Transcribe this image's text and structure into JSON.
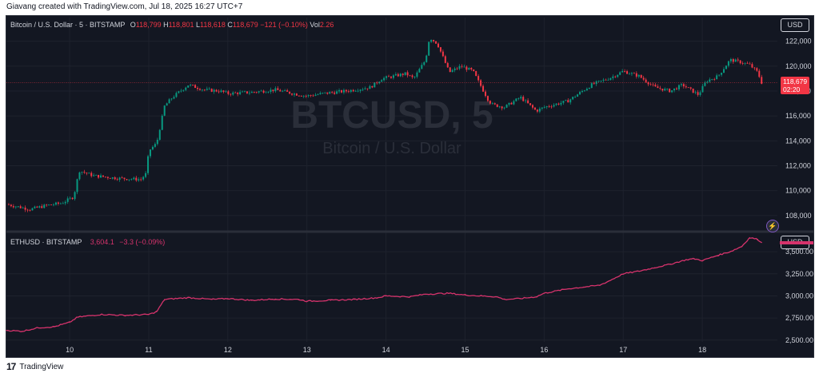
{
  "attribution": "Giavang created with TradingView.com, Jul 18, 2025 16:27 UTC+7",
  "footer": {
    "logo": "17",
    "brand": "TradingView"
  },
  "colors": {
    "background": "#131722",
    "up": "#089981",
    "down": "#f23645",
    "eth": "#d6336c",
    "grid": "#1e222d",
    "text": "#d1d4dc"
  },
  "legend_btc": {
    "symbol": "Bitcoin / U.S. Dollar · 5 · BITSTAMP",
    "o_label": "O",
    "o": "118,799",
    "h_label": "H",
    "h": "118,801",
    "l_label": "L",
    "l": "118,618",
    "c_label": "C",
    "c": "118,679",
    "change": "−121 (−0.10%)",
    "vol_label": "Vol",
    "vol": "2.26"
  },
  "legend_eth": {
    "symbol": "ETHUSD · BITSTAMP",
    "value": "3,604.1",
    "change": "−3.3 (−0.09%)"
  },
  "watermark": {
    "ticker": "BTCUSD, 5",
    "name": "Bitcoin / U.S. Dollar"
  },
  "currency_top": "USD",
  "currency_bottom": "USD",
  "price_tag": {
    "value": "118,679",
    "countdown": "02:20"
  },
  "bolt_icon": "lightning-bolt-icon",
  "chart_data": [
    {
      "type": "candlestick",
      "title": "Bitcoin / U.S. Dollar · 5 · BITSTAMP",
      "x_ticks": [
        "10",
        "11",
        "12",
        "13",
        "14",
        "15",
        "16",
        "17",
        "18"
      ],
      "y_ticks": [
        "108,000",
        "110,000",
        "112,000",
        "114,000",
        "116,000",
        "118,000",
        "120,000",
        "122,000"
      ],
      "ylim": [
        106900,
        123900
      ],
      "xlim": [
        9.2,
        18.95
      ],
      "last_price": 118679,
      "series": [
        {
          "name": "Bitcoin / U.S. Dollar",
          "x": [
            9.2,
            9.5,
            9.7,
            9.9,
            10.05,
            10.12,
            10.3,
            10.6,
            10.9,
            10.97,
            11.0,
            11.1,
            11.2,
            11.3,
            11.5,
            11.7,
            11.9,
            12.0,
            12.3,
            12.6,
            12.9,
            13.0,
            13.2,
            13.5,
            13.8,
            13.95,
            14.1,
            14.25,
            14.35,
            14.5,
            14.55,
            14.65,
            14.8,
            14.95,
            15.1,
            15.3,
            15.35,
            15.5,
            15.7,
            15.9,
            16.0,
            16.3,
            16.6,
            16.85,
            17.0,
            17.2,
            17.4,
            17.6,
            17.75,
            17.85,
            17.95,
            18.05,
            18.2,
            18.35,
            18.5,
            18.6,
            18.7,
            18.75
          ],
          "y": [
            108900,
            108500,
            108800,
            109000,
            109500,
            111600,
            111200,
            111000,
            110900,
            111400,
            113200,
            113800,
            116800,
            117500,
            118500,
            118100,
            118000,
            117800,
            117900,
            118100,
            117700,
            117600,
            117800,
            118000,
            118300,
            119000,
            119200,
            119400,
            119000,
            120500,
            122300,
            121800,
            119500,
            120000,
            119600,
            117200,
            116900,
            116700,
            117500,
            116400,
            116700,
            117200,
            118500,
            119100,
            119600,
            119200,
            118300,
            118000,
            118500,
            118100,
            117700,
            118800,
            119200,
            120500,
            120300,
            120100,
            119500,
            118679
          ]
        }
      ]
    },
    {
      "type": "line",
      "title": "ETHUSD · BITSTAMP",
      "y_ticks": [
        "2,500.00",
        "2,750.00",
        "3,000.00",
        "3,250.00",
        "3,500.00"
      ],
      "ylim": [
        2480,
        3700
      ],
      "xlim": [
        9.2,
        18.95
      ],
      "last_price": 3604.1,
      "series": [
        {
          "name": "ETHUSD",
          "x": [
            9.2,
            9.4,
            9.6,
            9.8,
            10.0,
            10.1,
            10.4,
            10.7,
            11.0,
            11.1,
            11.2,
            11.5,
            11.8,
            12.0,
            12.3,
            12.6,
            12.9,
            13.0,
            13.3,
            13.6,
            13.9,
            14.0,
            14.3,
            14.5,
            14.8,
            15.0,
            15.2,
            15.4,
            15.5,
            15.7,
            15.9,
            16.0,
            16.3,
            16.5,
            16.7,
            16.8,
            17.0,
            17.2,
            17.4,
            17.6,
            17.8,
            17.9,
            18.0,
            18.2,
            18.35,
            18.5,
            18.6,
            18.7,
            18.75
          ],
          "y": [
            2610,
            2600,
            2640,
            2650,
            2700,
            2760,
            2790,
            2780,
            2790,
            2820,
            2960,
            2980,
            2960,
            2970,
            2950,
            2965,
            2960,
            2940,
            2950,
            2960,
            2980,
            3000,
            2990,
            3020,
            3030,
            3010,
            3000,
            2990,
            2960,
            2970,
            2990,
            3030,
            3080,
            3100,
            3120,
            3160,
            3250,
            3280,
            3320,
            3360,
            3410,
            3420,
            3400,
            3460,
            3500,
            3560,
            3660,
            3640,
            3604
          ]
        }
      ]
    }
  ]
}
